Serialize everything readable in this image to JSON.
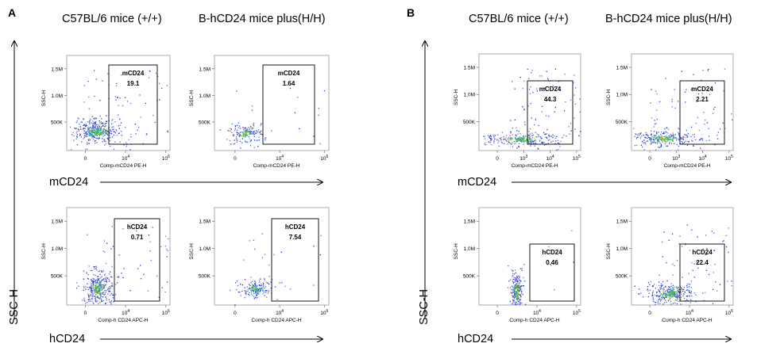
{
  "panels": [
    {
      "letter": "A",
      "col_titles": [
        "C57BL/6 mice (+/+)",
        "B-hCD24 mice plus(H/H)"
      ],
      "row_axis": [
        "mCD24",
        "hCD24"
      ],
      "y_axis": "SSC-H"
    },
    {
      "letter": "B",
      "col_titles": [
        "C57BL/6 mice (+/+)",
        "B-hCD24 mice plus(H/H)"
      ],
      "row_axis": [
        "mCD24",
        "hCD24"
      ],
      "y_axis": "SSC-H"
    }
  ],
  "chart_data": [
    {
      "type": "scatter",
      "panel": "A",
      "mouse": "C57BL/6 mice (+/+)",
      "marker": "mCD24",
      "xlabel": "Comp-mCD24 PE-H",
      "ylabel": "SSC-H",
      "yticks": [
        "500K",
        "1.0M",
        "1.5M"
      ],
      "xticks": [
        "0",
        "10^4",
        "10^6"
      ],
      "gate_label": "mCD24",
      "gate_value": "19.1"
    },
    {
      "type": "scatter",
      "panel": "A",
      "mouse": "B-hCD24 mice plus(H/H)",
      "marker": "mCD24",
      "xlabel": "Comp-mCD24 PE-H",
      "ylabel": "SSC-H",
      "yticks": [
        "500K",
        "1.0M",
        "1.5M"
      ],
      "xticks": [
        "0",
        "10^4",
        "10^6"
      ],
      "gate_label": "mCD24",
      "gate_value": "1.64"
    },
    {
      "type": "scatter",
      "panel": "A",
      "mouse": "C57BL/6 mice (+/+)",
      "marker": "hCD24",
      "xlabel": "Comp-h CD24 APC-H",
      "ylabel": "SSC-H",
      "yticks": [
        "500K",
        "1.0M",
        "1.5M"
      ],
      "xticks": [
        "0",
        "10^4",
        "10^6"
      ],
      "gate_label": "hCD24",
      "gate_value": "0.71"
    },
    {
      "type": "scatter",
      "panel": "A",
      "mouse": "B-hCD24 mice plus(H/H)",
      "marker": "hCD24",
      "xlabel": "Comp-h CD24 APC-H",
      "ylabel": "SSC-H",
      "yticks": [
        "500K",
        "1.0M",
        "1.5M"
      ],
      "xticks": [
        "0",
        "10^4",
        "10^6"
      ],
      "gate_label": "hCD24",
      "gate_value": "7.54"
    },
    {
      "type": "scatter",
      "panel": "B",
      "mouse": "C57BL/6 mice (+/+)",
      "marker": "mCD24",
      "xlabel": "Comp-mCD24 PE-H",
      "ylabel": "SSC-H",
      "yticks": [
        "500K",
        "1.0M",
        "1.5M"
      ],
      "xticks": [
        "0",
        "10^3",
        "10^4",
        "10^5"
      ],
      "gate_label": "mCD24",
      "gate_value": "44.3"
    },
    {
      "type": "scatter",
      "panel": "B",
      "mouse": "B-hCD24 mice plus(H/H)",
      "marker": "mCD24",
      "xlabel": "Comp-mCD24 PE-H",
      "ylabel": "SSC-H",
      "yticks": [
        "500K",
        "1.0M",
        "1.5M"
      ],
      "xticks": [
        "0",
        "10^3",
        "10^4",
        "10^5"
      ],
      "gate_label": "mCD24",
      "gate_value": "2.21"
    },
    {
      "type": "scatter",
      "panel": "B",
      "mouse": "C57BL/6 mice (+/+)",
      "marker": "hCD24",
      "xlabel": "Comp-h CD24 APC-H",
      "ylabel": "SSC-H",
      "yticks": [
        "500K",
        "1.0M",
        "1.5M"
      ],
      "xticks": [
        "0",
        "10^4",
        "10^5"
      ],
      "gate_label": "hCD24",
      "gate_value": "0.46"
    },
    {
      "type": "scatter",
      "panel": "B",
      "mouse": "B-hCD24 mice plus(H/H)",
      "marker": "hCD24",
      "xlabel": "Comp-h CD24 APC-H",
      "ylabel": "SSC-H",
      "yticks": [
        "500K",
        "1.0M",
        "1.5M"
      ],
      "xticks": [
        "0",
        "10^4",
        "10^6"
      ],
      "gate_label": "hCD24",
      "gate_value": "22.4"
    }
  ]
}
